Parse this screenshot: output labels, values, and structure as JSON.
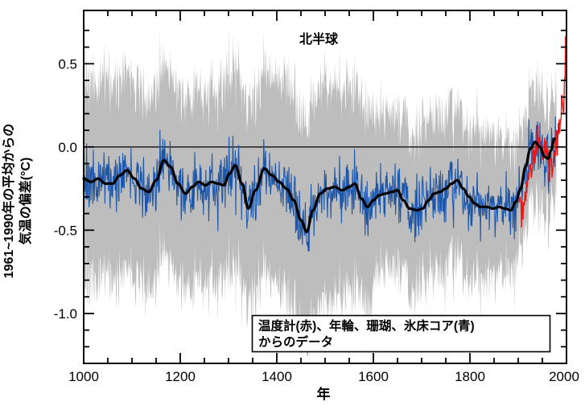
{
  "title": "北半球",
  "x_axis": {
    "label": "年",
    "tick_labels": [
      "1000",
      "1200",
      "1400",
      "1600",
      "1800",
      "2000"
    ]
  },
  "y_axis": {
    "label_line1": "1961~1990年の平均からの",
    "label_line2": "気温の偏差(°C)",
    "tick_labels": [
      "0.5",
      "0.0",
      "-0.5",
      "-1.0"
    ]
  },
  "legend": {
    "line1": "温度計(赤)、年輪、珊瑚、氷床コア(青)",
    "line2": "からのデータ"
  },
  "colors": {
    "band": "#bdbdbd",
    "annual_blue": "#1d57ac",
    "smoothed_black": "#000000",
    "instrumental_red": "#ee1414",
    "frame": "#000000",
    "background": "#ffffff"
  },
  "chart_data": {
    "type": "line",
    "title": "北半球",
    "xlabel": "年",
    "ylabel": "1961~1990年の平均からの気温の偏差(°C)",
    "legend_note": "温度計(赤)、年輪、珊瑚、氷床コア(青)からのデータ",
    "xlim": [
      1000,
      2000
    ],
    "ylim": [
      -1.3,
      0.82
    ],
    "x_major_ticks": [
      1000,
      1200,
      1400,
      1600,
      1800,
      2000
    ],
    "x_minor_step": 50,
    "y_major_ticks": [
      0.5,
      0.0,
      -0.5,
      -1.0
    ],
    "y_minor_range": [
      -1.2,
      0.7
    ],
    "y_minor_step": 0.1,
    "zero_line": 0.0,
    "grid": false,
    "series": [
      {
        "name": "uncertainty-band",
        "type": "band",
        "color": "#bdbdbd",
        "range": [
          1000,
          1979
        ],
        "halfwidth_points": [
          [
            1000,
            0.55
          ],
          [
            1200,
            0.53
          ],
          [
            1350,
            0.55
          ],
          [
            1460,
            0.62
          ],
          [
            1598,
            0.55
          ],
          [
            1602,
            0.43
          ],
          [
            1700,
            0.43
          ],
          [
            1800,
            0.41
          ],
          [
            1870,
            0.36
          ],
          [
            1902,
            0.31
          ],
          [
            1979,
            0.28
          ]
        ],
        "edge_spike_amp": 0.13,
        "seed": 91
      },
      {
        "name": "annual-reconstruction-blue",
        "type": "noisy-line",
        "color": "#1d57ac",
        "range": [
          1000,
          1979
        ],
        "noise_amp": 0.17,
        "seed": 20
      },
      {
        "name": "smoothed-reconstruction-black",
        "type": "smooth-line",
        "color": "#000000",
        "points": [
          [
            1000,
            -0.19
          ],
          [
            1015,
            -0.21
          ],
          [
            1030,
            -0.19
          ],
          [
            1045,
            -0.22
          ],
          [
            1060,
            -0.22
          ],
          [
            1075,
            -0.17
          ],
          [
            1090,
            -0.14
          ],
          [
            1105,
            -0.19
          ],
          [
            1120,
            -0.25
          ],
          [
            1135,
            -0.27
          ],
          [
            1150,
            -0.2
          ],
          [
            1166,
            -0.08
          ],
          [
            1180,
            -0.12
          ],
          [
            1195,
            -0.22
          ],
          [
            1211,
            -0.28
          ],
          [
            1225,
            -0.24
          ],
          [
            1238,
            -0.21
          ],
          [
            1252,
            -0.23
          ],
          [
            1265,
            -0.21
          ],
          [
            1278,
            -0.22
          ],
          [
            1290,
            -0.23
          ],
          [
            1302,
            -0.16
          ],
          [
            1314,
            -0.11
          ],
          [
            1328,
            -0.22
          ],
          [
            1341,
            -0.37
          ],
          [
            1356,
            -0.26
          ],
          [
            1374,
            -0.13
          ],
          [
            1390,
            -0.17
          ],
          [
            1405,
            -0.21
          ],
          [
            1420,
            -0.25
          ],
          [
            1435,
            -0.32
          ],
          [
            1450,
            -0.44
          ],
          [
            1462,
            -0.51
          ],
          [
            1475,
            -0.38
          ],
          [
            1490,
            -0.28
          ],
          [
            1505,
            -0.25
          ],
          [
            1520,
            -0.24
          ],
          [
            1535,
            -0.26
          ],
          [
            1550,
            -0.24
          ],
          [
            1562,
            -0.22
          ],
          [
            1575,
            -0.31
          ],
          [
            1588,
            -0.36
          ],
          [
            1600,
            -0.32
          ],
          [
            1612,
            -0.29
          ],
          [
            1625,
            -0.28
          ],
          [
            1638,
            -0.27
          ],
          [
            1650,
            -0.26
          ],
          [
            1662,
            -0.32
          ],
          [
            1675,
            -0.37
          ],
          [
            1690,
            -0.38
          ],
          [
            1702,
            -0.37
          ],
          [
            1714,
            -0.32
          ],
          [
            1726,
            -0.28
          ],
          [
            1738,
            -0.27
          ],
          [
            1750,
            -0.25
          ],
          [
            1762,
            -0.22
          ],
          [
            1774,
            -0.2
          ],
          [
            1786,
            -0.25
          ],
          [
            1798,
            -0.3
          ],
          [
            1810,
            -0.34
          ],
          [
            1822,
            -0.36
          ],
          [
            1835,
            -0.36
          ],
          [
            1848,
            -0.37
          ],
          [
            1860,
            -0.36
          ],
          [
            1872,
            -0.37
          ],
          [
            1885,
            -0.38
          ],
          [
            1895,
            -0.33
          ],
          [
            1905,
            -0.25
          ],
          [
            1915,
            -0.12
          ],
          [
            1925,
            -0.01
          ],
          [
            1935,
            0.03
          ],
          [
            1945,
            0.0
          ],
          [
            1955,
            -0.06
          ],
          [
            1962,
            -0.07
          ],
          [
            1968,
            -0.02
          ],
          [
            1975,
            0.05
          ]
        ]
      },
      {
        "name": "instrumental-red",
        "type": "noisy-line",
        "color": "#ee1414",
        "range": [
          1902,
          2000
        ],
        "noise_amp": 0.1,
        "seed": 77,
        "points": [
          [
            1902,
            -0.3
          ],
          [
            1907,
            -0.36
          ],
          [
            1912,
            -0.32
          ],
          [
            1917,
            -0.25
          ],
          [
            1922,
            -0.16
          ],
          [
            1927,
            -0.1
          ],
          [
            1932,
            -0.06
          ],
          [
            1937,
            0.04
          ],
          [
            1941,
            0.08
          ],
          [
            1945,
            0.04
          ],
          [
            1950,
            -0.06
          ],
          [
            1955,
            -0.04
          ],
          [
            1960,
            -0.02
          ],
          [
            1964,
            -0.12
          ],
          [
            1968,
            -0.06
          ],
          [
            1972,
            -0.1
          ],
          [
            1976,
            -0.08
          ],
          [
            1980,
            0.06
          ],
          [
            1984,
            0.1
          ],
          [
            1988,
            0.18
          ],
          [
            1991,
            0.24
          ],
          [
            1993,
            0.16
          ],
          [
            1995,
            0.32
          ],
          [
            1997,
            0.44
          ],
          [
            1998,
            0.62
          ],
          [
            1999,
            0.5
          ],
          [
            2000,
            0.68
          ]
        ]
      }
    ]
  }
}
